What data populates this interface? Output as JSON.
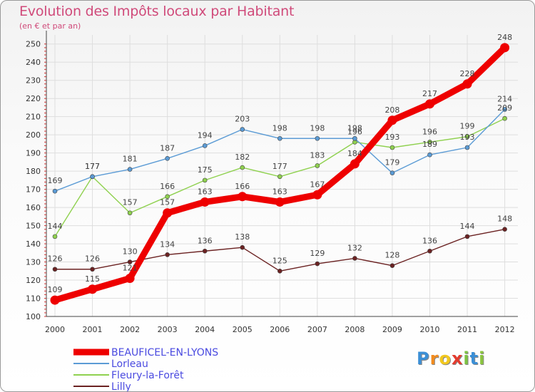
{
  "title": "Evolution des Impôts locaux par Habitant",
  "subtitle": "(en € et par an)",
  "chart_data": {
    "type": "line",
    "title": "Evolution des Impôts locaux par Habitant",
    "ylabel": "(en € et par an)",
    "x": [
      "2000",
      "2001",
      "2002",
      "2003",
      "2004",
      "2005",
      "2006",
      "2007",
      "2008",
      "2009",
      "2010",
      "2011",
      "2012"
    ],
    "yticks": [
      100,
      110,
      120,
      130,
      140,
      150,
      160,
      170,
      180,
      190,
      200,
      210,
      220,
      230,
      240,
      250
    ],
    "ylim": [
      100,
      255
    ],
    "series": [
      {
        "name": "BEAUFICEL-EN-LYONS",
        "color": "#ee0000",
        "values": [
          109,
          115,
          121,
          157,
          163,
          166,
          163,
          167,
          184,
          208,
          217,
          228,
          248
        ],
        "labels": [
          "109",
          "115",
          "121",
          "157",
          "163",
          "166",
          "163",
          "167",
          "184",
          "208",
          "217",
          "228",
          "248"
        ]
      },
      {
        "name": "Lorleau",
        "color": "#5b9bd5",
        "values": [
          169,
          177,
          181,
          187,
          194,
          203,
          198,
          198,
          198,
          179,
          189,
          193,
          214
        ],
        "labels": [
          "169",
          "177",
          "181",
          "187",
          "194",
          "203",
          "198",
          "198",
          "198",
          "179",
          "189",
          "193",
          "214"
        ]
      },
      {
        "name": "Fleury-la-Forêt",
        "color": "#8fd14f",
        "values": [
          144,
          177,
          157,
          166,
          175,
          182,
          177,
          183,
          196,
          193,
          196,
          199,
          209
        ],
        "labels": [
          "144",
          "177",
          "157",
          "166",
          "175",
          "182",
          "177",
          "183",
          "196",
          "193",
          "196",
          "199",
          "209"
        ]
      },
      {
        "name": "Lilly",
        "color": "#6b2222",
        "values": [
          126,
          126,
          130,
          134,
          136,
          138,
          125,
          129,
          132,
          128,
          136,
          144,
          148
        ],
        "labels": [
          "126",
          "126",
          "130",
          "134",
          "136",
          "138",
          "125",
          "129",
          "132",
          "128",
          "136",
          "144",
          "148"
        ]
      }
    ]
  },
  "logo": {
    "letters": [
      "P",
      "r",
      "o",
      "x",
      "i",
      "t",
      "i"
    ],
    "colors": [
      "#3b8fd6",
      "#f28c1e",
      "#f2c81e",
      "#e33b2e",
      "#7cc242",
      "#3b8fd6",
      "#8bc53f"
    ]
  }
}
